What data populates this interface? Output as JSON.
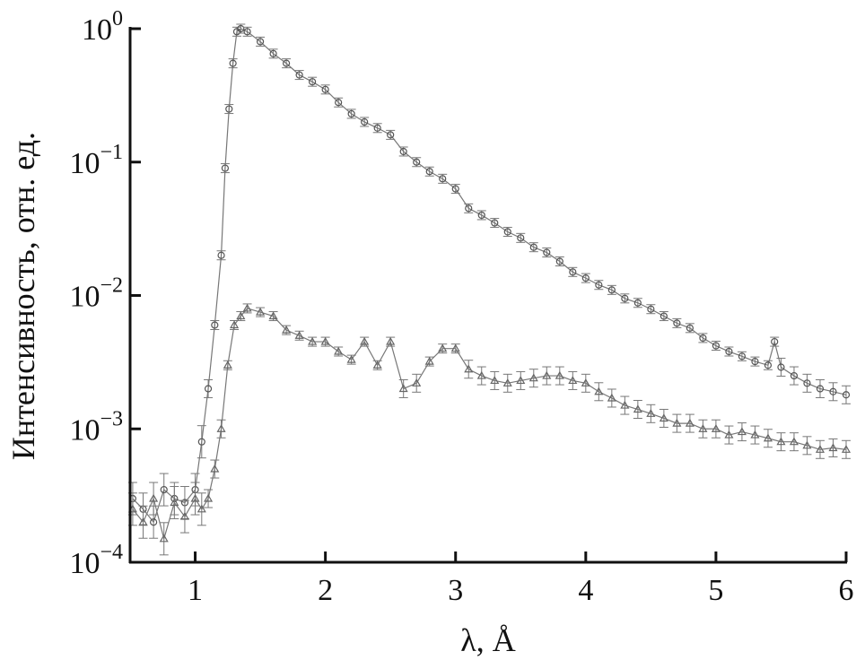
{
  "chart_data": {
    "type": "scatter",
    "xlabel": "λ, Å",
    "ylabel": "Интенсивность, отн. ед.",
    "xlim": [
      0.5,
      6
    ],
    "ylim": [
      0.0001,
      1
    ],
    "yscale": "log",
    "grid": false,
    "x_ticks": [
      {
        "v": 1,
        "label": "1"
      },
      {
        "v": 2,
        "label": "2"
      },
      {
        "v": 3,
        "label": "3"
      },
      {
        "v": 4,
        "label": "4"
      },
      {
        "v": 5,
        "label": "5"
      },
      {
        "v": 6,
        "label": "6"
      }
    ],
    "y_ticks": [
      {
        "v": 1,
        "base": "10",
        "exp": "0"
      },
      {
        "v": 0.1,
        "base": "10",
        "exp": "−1"
      },
      {
        "v": 0.01,
        "base": "10",
        "exp": "−2"
      },
      {
        "v": 0.001,
        "base": "10",
        "exp": "−3"
      },
      {
        "v": 0.0001,
        "base": "10",
        "exp": "−4"
      }
    ],
    "marker_color": "#777777",
    "series": [
      {
        "marker": "circle",
        "x": [
          0.52,
          0.6,
          0.68,
          0.76,
          0.84,
          0.92,
          1.0,
          1.05,
          1.1,
          1.15,
          1.2,
          1.23,
          1.26,
          1.29,
          1.32,
          1.35,
          1.4,
          1.5,
          1.6,
          1.7,
          1.8,
          1.9,
          2.0,
          2.1,
          2.2,
          2.3,
          2.4,
          2.5,
          2.6,
          2.7,
          2.8,
          2.9,
          3.0,
          3.1,
          3.2,
          3.3,
          3.4,
          3.5,
          3.6,
          3.7,
          3.8,
          3.9,
          4.0,
          4.1,
          4.2,
          4.3,
          4.4,
          4.5,
          4.6,
          4.7,
          4.8,
          4.9,
          5.0,
          5.1,
          5.2,
          5.3,
          5.4,
          5.45,
          5.5,
          5.6,
          5.7,
          5.8,
          5.9,
          6.0
        ],
        "y": [
          0.0003,
          0.00025,
          0.0002,
          0.00035,
          0.0003,
          0.00028,
          0.00035,
          0.0008,
          0.002,
          0.006,
          0.02,
          0.09,
          0.25,
          0.55,
          0.95,
          1.0,
          0.95,
          0.8,
          0.65,
          0.55,
          0.45,
          0.4,
          0.35,
          0.28,
          0.23,
          0.2,
          0.18,
          0.16,
          0.12,
          0.1,
          0.085,
          0.075,
          0.063,
          0.045,
          0.04,
          0.035,
          0.03,
          0.027,
          0.023,
          0.021,
          0.018,
          0.015,
          0.0135,
          0.012,
          0.011,
          0.0095,
          0.0088,
          0.0079,
          0.007,
          0.0062,
          0.0057,
          0.0048,
          0.0042,
          0.0038,
          0.0035,
          0.0032,
          0.003,
          0.0045,
          0.0029,
          0.0025,
          0.0022,
          0.002,
          0.0019,
          0.0018
        ]
      },
      {
        "marker": "triangle",
        "x": [
          0.52,
          0.6,
          0.68,
          0.76,
          0.84,
          0.92,
          1.0,
          1.05,
          1.1,
          1.15,
          1.2,
          1.25,
          1.3,
          1.35,
          1.4,
          1.5,
          1.6,
          1.7,
          1.8,
          1.9,
          2.0,
          2.1,
          2.2,
          2.3,
          2.4,
          2.5,
          2.6,
          2.7,
          2.8,
          2.9,
          3.0,
          3.1,
          3.2,
          3.3,
          3.4,
          3.5,
          3.6,
          3.7,
          3.8,
          3.9,
          4.0,
          4.1,
          4.2,
          4.3,
          4.4,
          4.5,
          4.6,
          4.7,
          4.8,
          4.9,
          5.0,
          5.1,
          5.2,
          5.3,
          5.4,
          5.5,
          5.6,
          5.7,
          5.8,
          5.9,
          6.0
        ],
        "y": [
          0.00025,
          0.0002,
          0.0003,
          0.00015,
          0.00028,
          0.00022,
          0.0003,
          0.00025,
          0.0003,
          0.0005,
          0.001,
          0.003,
          0.006,
          0.007,
          0.008,
          0.0075,
          0.007,
          0.0055,
          0.005,
          0.0045,
          0.0045,
          0.0038,
          0.0033,
          0.0045,
          0.003,
          0.0045,
          0.002,
          0.0022,
          0.0032,
          0.004,
          0.004,
          0.0028,
          0.0025,
          0.0023,
          0.0022,
          0.0023,
          0.0024,
          0.0025,
          0.0025,
          0.0023,
          0.0022,
          0.0019,
          0.0017,
          0.0015,
          0.0014,
          0.0013,
          0.0012,
          0.0011,
          0.0011,
          0.001,
          0.001,
          0.0009,
          0.00095,
          0.0009,
          0.00085,
          0.0008,
          0.0008,
          0.00075,
          0.0007,
          0.00072,
          0.0007
        ]
      }
    ]
  }
}
